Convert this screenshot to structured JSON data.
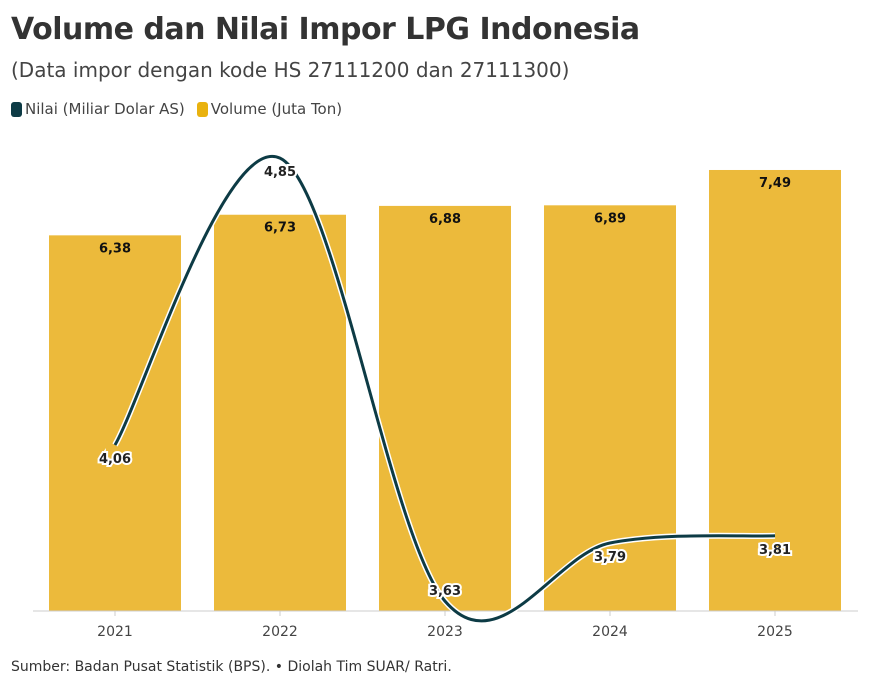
{
  "chart_data": {
    "type": "bar+line",
    "title": "Volume dan Nilai Impor LPG Indonesia",
    "subtitle": "(Data impor dengan kode HS 27111200 dan 27111300)",
    "categories": [
      "2021",
      "2022",
      "2023",
      "2024",
      "2025"
    ],
    "series": [
      {
        "name": "Nilai (Miliar Dolar AS)",
        "type": "line",
        "color": "#0d3b45",
        "values": [
          4.06,
          4.85,
          3.63,
          3.79,
          3.81
        ],
        "labels": [
          "4,06",
          "4,85",
          "3,63",
          "3,79",
          "3,81"
        ],
        "ylim": [
          3.6,
          4.9
        ]
      },
      {
        "name": "Volume (Juta Ton)",
        "type": "bar",
        "color": "#ecba3b",
        "values": [
          6.38,
          6.73,
          6.88,
          6.89,
          7.49
        ],
        "labels": [
          "6,38",
          "6,73",
          "6,88",
          "6,89",
          "7,49"
        ],
        "ylim": [
          0,
          7.5
        ]
      }
    ],
    "legend": "top-left",
    "grid": false,
    "source": "Sumber: Badan Pusat Statistik (BPS). • Diolah Tim SUAR/ Ratri."
  }
}
